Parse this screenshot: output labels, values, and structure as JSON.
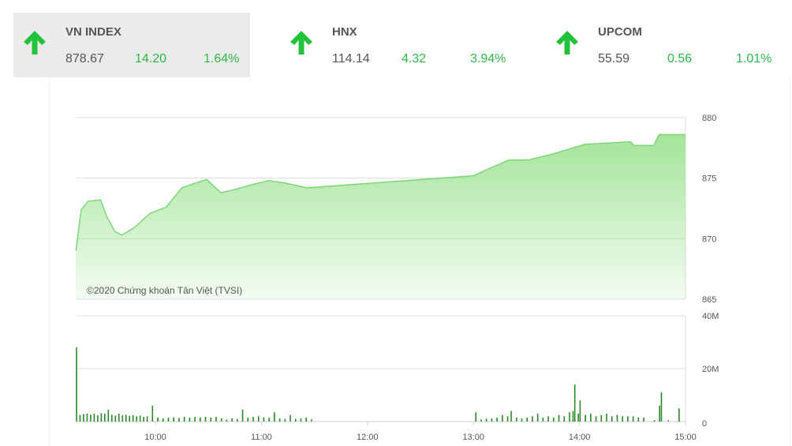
{
  "indices": [
    {
      "name": "VN INDEX",
      "value": "878.67",
      "change": "14.20",
      "percent": "1.64%",
      "direction": "up",
      "selected": true
    },
    {
      "name": "HNX",
      "value": "114.14",
      "change": "4.32",
      "percent": "3.94%",
      "direction": "up",
      "selected": false
    },
    {
      "name": "UPCOM",
      "value": "55.59",
      "change": "0.56",
      "percent": "1.01%",
      "direction": "up",
      "selected": false
    }
  ],
  "colors": {
    "up": "#2db84a",
    "line": "#7fd67a",
    "fill_top": "#9fe394",
    "volume_bar": "#2a8a2a"
  },
  "chart_data": [
    {
      "type": "area",
      "watermark": "©2020 Chứng khoán Tân Việt (TVSI)",
      "ylim": [
        865,
        880
      ],
      "yticks": [
        "880",
        "875",
        "870",
        "865"
      ],
      "grid": true,
      "points": [
        [
          "09:15",
          869.0
        ],
        [
          "09:18",
          872.4
        ],
        [
          "09:22",
          873.1
        ],
        [
          "09:29",
          873.2
        ],
        [
          "09:32",
          872.0
        ],
        [
          "09:37",
          870.6
        ],
        [
          "09:41",
          870.3
        ],
        [
          "09:48",
          870.9
        ],
        [
          "09:57",
          872.1
        ],
        [
          "10:06",
          872.6
        ],
        [
          "10:15",
          874.2
        ],
        [
          "10:29",
          874.9
        ],
        [
          "10:37",
          873.8
        ],
        [
          "10:46",
          874.1
        ],
        [
          "10:53",
          874.4
        ],
        [
          "11:04",
          874.8
        ],
        [
          "11:13",
          874.6
        ],
        [
          "11:26",
          874.2
        ],
        [
          "13:00",
          875.2
        ],
        [
          "13:09",
          875.8
        ],
        [
          "13:20",
          876.5
        ],
        [
          "13:31",
          876.5
        ],
        [
          "13:45",
          877.0
        ],
        [
          "14:03",
          877.8
        ],
        [
          "14:16",
          877.9
        ],
        [
          "14:29",
          878.0
        ],
        [
          "14:31",
          877.7
        ],
        [
          "14:42",
          877.7
        ],
        [
          "14:45",
          878.6
        ],
        [
          "15:00",
          878.6
        ]
      ]
    },
    {
      "type": "bar",
      "ylim": [
        0,
        40
      ],
      "yticks": [
        "40M",
        "20M",
        "0"
      ],
      "xticks": [
        "10:00",
        "11:00",
        "12:00",
        "13:00",
        "14:00",
        "15:00"
      ],
      "xlim": [
        "09:15",
        "15:00"
      ],
      "grid": true,
      "volume_millions": [
        [
          "09:15",
          28
        ],
        [
          "09:17",
          2.5
        ],
        [
          "09:19",
          2.8
        ],
        [
          "09:21",
          3
        ],
        [
          "09:23",
          2.6
        ],
        [
          "09:25",
          3
        ],
        [
          "09:27",
          2.4
        ],
        [
          "09:29",
          3.2
        ],
        [
          "09:31",
          3
        ],
        [
          "09:33",
          4.5
        ],
        [
          "09:35",
          2.6
        ],
        [
          "09:37",
          2.2
        ],
        [
          "09:39",
          3
        ],
        [
          "09:41",
          2.4
        ],
        [
          "09:43",
          2.6
        ],
        [
          "09:45",
          2.2
        ],
        [
          "09:47",
          2.4
        ],
        [
          "09:49",
          2
        ],
        [
          "09:51",
          2.2
        ],
        [
          "09:53",
          1.8
        ],
        [
          "09:55",
          2
        ],
        [
          "09:58",
          6
        ],
        [
          "10:01",
          1.5
        ],
        [
          "10:04",
          1.2
        ],
        [
          "10:07",
          1.5
        ],
        [
          "10:10",
          1.6
        ],
        [
          "10:13",
          1.4
        ],
        [
          "10:16",
          1.8
        ],
        [
          "10:19",
          1.5
        ],
        [
          "10:22",
          1.8
        ],
        [
          "10:25",
          1.6
        ],
        [
          "10:28",
          1.8
        ],
        [
          "10:31",
          1.5
        ],
        [
          "10:34",
          1.8
        ],
        [
          "10:37",
          1.2
        ],
        [
          "10:40",
          0.8
        ],
        [
          "10:43",
          1.2
        ],
        [
          "10:46",
          1
        ],
        [
          "10:49",
          4.5
        ],
        [
          "10:52",
          1.5
        ],
        [
          "10:55",
          1.8
        ],
        [
          "10:58",
          2
        ],
        [
          "11:01",
          1.6
        ],
        [
          "11:04",
          1.5
        ],
        [
          "11:07",
          3.5
        ],
        [
          "11:10",
          1.2
        ],
        [
          "11:13",
          1
        ],
        [
          "11:16",
          2.5
        ],
        [
          "11:19",
          1
        ],
        [
          "11:22",
          1.2
        ],
        [
          "11:25",
          1.5
        ],
        [
          "11:28",
          0.8
        ],
        [
          "13:01",
          3.5
        ],
        [
          "13:04",
          0.8
        ],
        [
          "13:07",
          1
        ],
        [
          "13:10",
          1.2
        ],
        [
          "13:13",
          1.5
        ],
        [
          "13:16",
          2.5
        ],
        [
          "13:19",
          2
        ],
        [
          "13:21",
          4
        ],
        [
          "13:24",
          1.5
        ],
        [
          "13:27",
          1.2
        ],
        [
          "13:30",
          1.5
        ],
        [
          "13:33",
          2
        ],
        [
          "13:36",
          3
        ],
        [
          "13:39",
          1.5
        ],
        [
          "13:42",
          2
        ],
        [
          "13:45",
          1.5
        ],
        [
          "13:48",
          2.5
        ],
        [
          "13:51",
          2
        ],
        [
          "13:54",
          3.5
        ],
        [
          "13:56",
          4
        ],
        [
          "13:57",
          14
        ],
        [
          "13:59",
          3
        ],
        [
          "14:00",
          8
        ],
        [
          "14:03",
          2.5
        ],
        [
          "14:06",
          3
        ],
        [
          "14:09",
          2
        ],
        [
          "14:12",
          2.5
        ],
        [
          "14:15",
          3
        ],
        [
          "14:18",
          2
        ],
        [
          "14:21",
          2.5
        ],
        [
          "14:24",
          2
        ],
        [
          "14:27",
          2
        ],
        [
          "14:30",
          2
        ],
        [
          "14:33",
          1.5
        ],
        [
          "14:36",
          1.5
        ],
        [
          "14:42",
          0.5
        ],
        [
          "14:45",
          6
        ],
        [
          "14:46",
          11
        ],
        [
          "14:50",
          0.5
        ],
        [
          "14:56",
          5
        ]
      ]
    }
  ]
}
